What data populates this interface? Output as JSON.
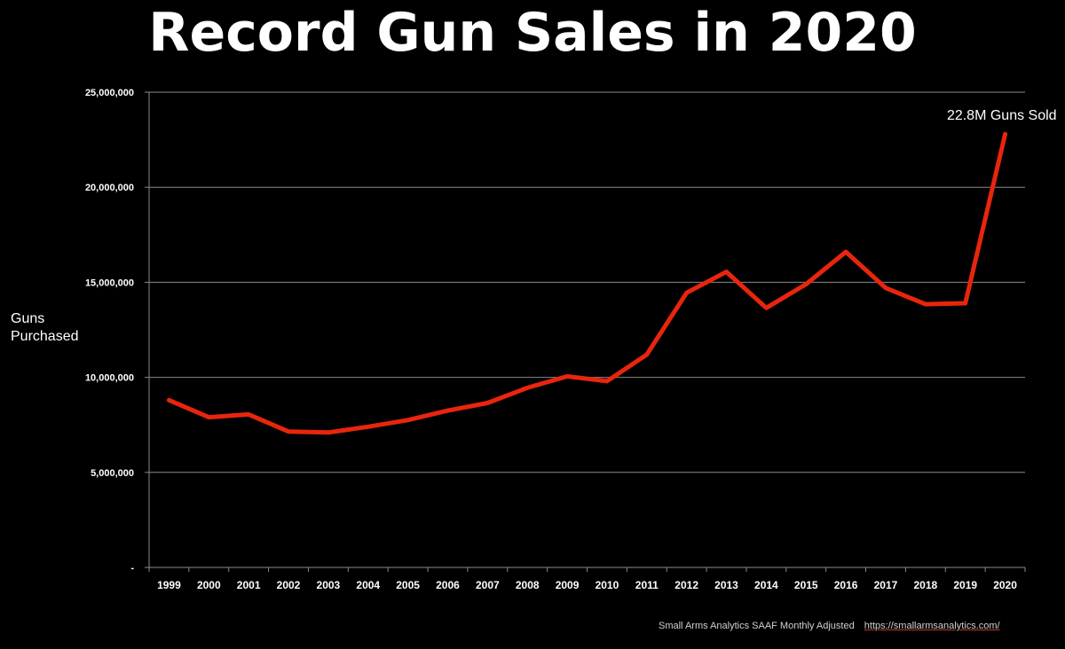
{
  "chart_data": {
    "type": "line",
    "title": "Record Gun Sales in 2020",
    "xlabel": "",
    "ylabel": "Guns Purchased",
    "ylim": [
      0,
      25000000
    ],
    "yticks": [
      {
        "value": 0,
        "label": "-"
      },
      {
        "value": 5000000,
        "label": "5,000,000"
      },
      {
        "value": 10000000,
        "label": "10,000,000"
      },
      {
        "value": 15000000,
        "label": "15,000,000"
      },
      {
        "value": 20000000,
        "label": "20,000,000"
      },
      {
        "value": 25000000,
        "label": "25,000,000"
      }
    ],
    "grid": true,
    "categories": [
      "1999",
      "2000",
      "2001",
      "2002",
      "2003",
      "2004",
      "2005",
      "2006",
      "2007",
      "2008",
      "2009",
      "2010",
      "2011",
      "2012",
      "2013",
      "2014",
      "2015",
      "2016",
      "2017",
      "2018",
      "2019",
      "2020"
    ],
    "series": [
      {
        "values": [
          8800000,
          7900000,
          8050000,
          7150000,
          7100000,
          7400000,
          7750000,
          8250000,
          8650000,
          9450000,
          10050000,
          9800000,
          11200000,
          14450000,
          15550000,
          13650000,
          14900000,
          16600000,
          14700000,
          13850000,
          13900000,
          22800000
        ],
        "color": "#e8250d"
      }
    ],
    "annotations": [
      {
        "text": "22.8M Guns Sold",
        "category": "2020",
        "value": 22800000
      }
    ],
    "source": "Small Arms Analytics SAAF Monthly Adjusted",
    "source_url": "https://smallarmsanalytics.com/"
  }
}
